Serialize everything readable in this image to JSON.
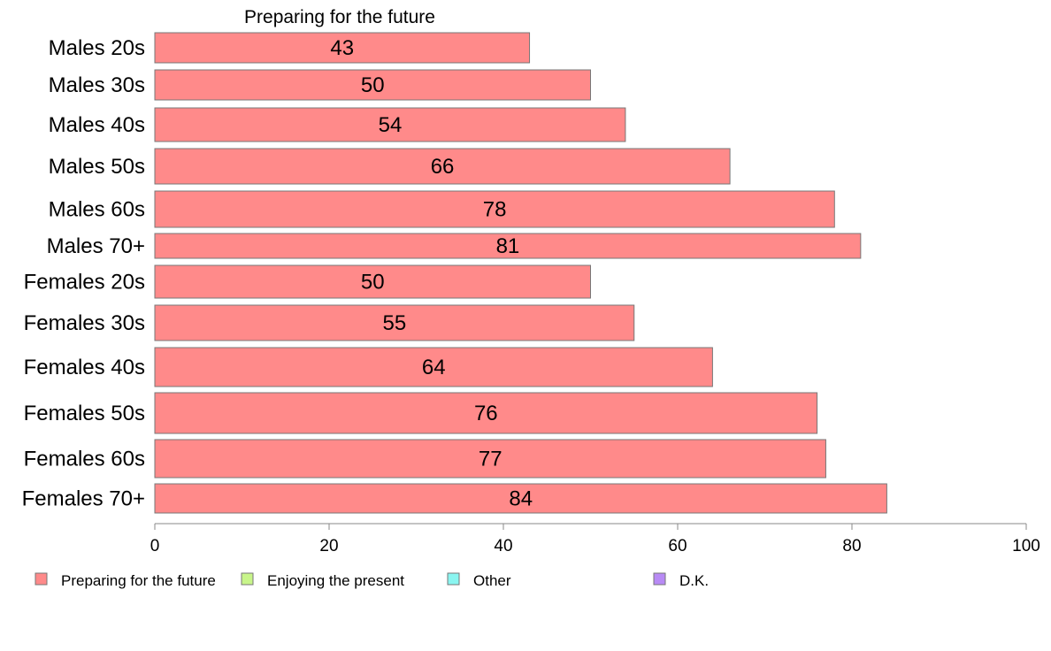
{
  "chart_data": {
    "type": "bar",
    "orientation": "horizontal",
    "title": "Preparing for the future",
    "categories": [
      "Males 20s",
      "Males 30s",
      "Males 40s",
      "Males 50s",
      "Males 60s",
      "Males 70+",
      "Females 20s",
      "Females 30s",
      "Females 40s",
      "Females 50s",
      "Females 60s",
      "Females 70+"
    ],
    "series": [
      {
        "name": "Preparing for the future",
        "color": "#ff8a8a",
        "values": [
          43,
          50,
          54,
          66,
          78,
          81,
          50,
          55,
          64,
          76,
          77,
          84
        ]
      }
    ],
    "xticks": [
      "0",
      "20",
      "40",
      "60",
      "80",
      "100"
    ],
    "xlim": [
      0,
      100
    ],
    "legend": {
      "placement": "bottom",
      "items": [
        {
          "label": "Preparing for the future",
          "color": "#ff8a8a"
        },
        {
          "label": "Enjoying the present",
          "color": "#c8f58a"
        },
        {
          "label": "Other",
          "color": "#8af5f0"
        },
        {
          "label": "D.K.",
          "color": "#b88af5"
        }
      ]
    }
  }
}
